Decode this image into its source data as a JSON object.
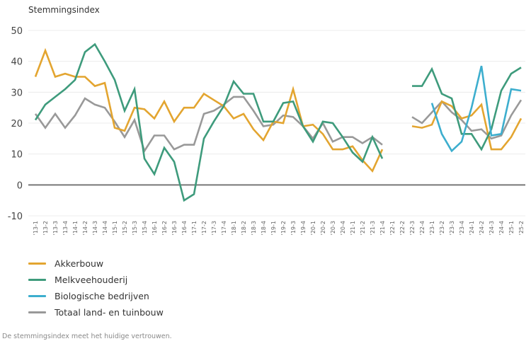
{
  "chart_data": {
    "type": "line",
    "title": "",
    "ylabel": "Stemmingsindex",
    "xlabel": "",
    "ylim": [
      -10,
      50
    ],
    "yticks": [
      50,
      40,
      30,
      20,
      10,
      0,
      -10
    ],
    "grid": true,
    "legend_position": "bottom-left",
    "categories": [
      "'13-1",
      "'13-2",
      "'13-3",
      "'13-4",
      "'14-1",
      "'14-2",
      "'14-3",
      "'14-4",
      "'15-1",
      "'15-2",
      "'15-3",
      "'15-4",
      "'16-1",
      "'16-2",
      "'16-3",
      "'16-4",
      "'17-1",
      "'17-2",
      "'17-3",
      "'17-4",
      "'18-1",
      "'18-2",
      "'18-3",
      "'18-4",
      "'19-1",
      "'19-2",
      "'19-3",
      "'19-4",
      "'20-1",
      "'20-2",
      "'20-3",
      "'20-4",
      "'21-1",
      "'21-2",
      "'21-3",
      "'21-4",
      "'22-1",
      "'22-2",
      "'22-3",
      "'22-4",
      "'23-1",
      "'23-2",
      "'23-3",
      "'23-4",
      "'24-1",
      "'24-2",
      "'24-3",
      "'24-4",
      "'25-1",
      "'25-2"
    ],
    "series": [
      {
        "name": "Akkerbouw",
        "color": "#E3A530",
        "values": [
          35,
          43.5,
          35,
          36,
          35,
          35,
          32,
          33,
          18.5,
          17.5,
          25,
          24.5,
          21.5,
          27,
          20.5,
          25,
          25,
          29.5,
          27.5,
          25.5,
          21.5,
          23,
          18,
          14.5,
          20.5,
          20,
          31,
          19,
          19.5,
          16.5,
          11.5,
          11.5,
          12.5,
          8,
          4.5,
          11.5,
          null,
          null,
          19,
          18.5,
          19.5,
          27,
          25.5,
          21.5,
          22.5,
          26,
          11.5,
          11.5,
          15.5,
          21.5
        ]
      },
      {
        "name": "Melkveehouderij",
        "color": "#3E9B7C",
        "values": [
          21,
          26,
          28.5,
          31,
          34,
          43,
          45.5,
          40,
          34,
          24,
          31,
          8.5,
          3.5,
          12,
          7.5,
          -5,
          -3,
          15,
          20.5,
          25.5,
          33.5,
          29.5,
          29.5,
          20.5,
          20.5,
          26.5,
          27,
          19,
          14,
          20.5,
          20,
          15.5,
          10.5,
          7.5,
          15.5,
          8.5,
          null,
          null,
          32,
          32,
          37.5,
          29.5,
          28,
          16.5,
          16.5,
          11.5,
          18,
          30.5,
          36,
          38
        ]
      },
      {
        "name": "Biologische bedrijven",
        "color": "#3DAECE",
        "values": [
          null,
          null,
          null,
          null,
          null,
          null,
          null,
          null,
          null,
          null,
          null,
          null,
          null,
          null,
          null,
          null,
          null,
          null,
          null,
          null,
          null,
          null,
          null,
          null,
          null,
          null,
          null,
          null,
          null,
          null,
          null,
          null,
          null,
          null,
          null,
          null,
          null,
          null,
          null,
          null,
          26.5,
          16.5,
          11,
          14,
          25,
          38.5,
          16,
          16.5,
          31,
          30.5
        ]
      },
      {
        "name": "Totaal land- en tuinbouw",
        "color": "#999999",
        "values": [
          23,
          18.5,
          23,
          18.5,
          22.5,
          28,
          26,
          25,
          20.5,
          15.5,
          21,
          11,
          16,
          16,
          11.5,
          13,
          13,
          23,
          24,
          26,
          28.5,
          28.5,
          24,
          19,
          19.5,
          22.5,
          22,
          19,
          15,
          20,
          14,
          15.5,
          15.5,
          13.5,
          15.5,
          13,
          null,
          null,
          22,
          20,
          23.5,
          27,
          23.5,
          21,
          17.5,
          18,
          15,
          16,
          22.5,
          27.5
        ]
      }
    ]
  },
  "legend": {
    "items": [
      {
        "label": "Akkerbouw"
      },
      {
        "label": "Melkveehouderij"
      },
      {
        "label": "Biologische bedrijven"
      },
      {
        "label": "Totaal land- en tuinbouw"
      }
    ]
  },
  "footnote": "De stemmingsindex meet het huidige vertrouwen."
}
